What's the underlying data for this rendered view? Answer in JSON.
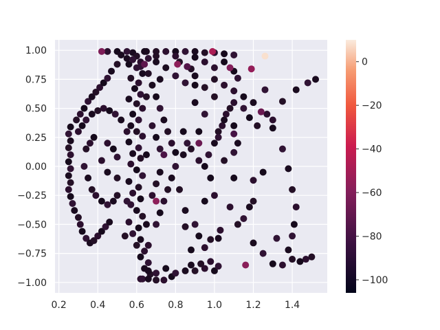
{
  "chart_data": {
    "type": "scatter",
    "title": "",
    "xlabel": "",
    "ylabel": "",
    "xlim": [
      0.18,
      1.58
    ],
    "ylim": [
      -1.09,
      1.09
    ],
    "grid": true,
    "xticks": [
      0.2,
      0.4,
      0.6,
      0.8,
      1.0,
      1.2,
      1.4
    ],
    "xtick_labels": [
      "0.2",
      "0.4",
      "0.6",
      "0.8",
      "1.0",
      "1.2",
      "1.4"
    ],
    "yticks": [
      -1.0,
      -0.75,
      -0.5,
      -0.25,
      0.0,
      0.25,
      0.5,
      0.75,
      1.0
    ],
    "ytick_labels": [
      "−1.00",
      "−0.75",
      "−0.50",
      "−0.25",
      "0.00",
      "0.25",
      "0.50",
      "0.75",
      "1.00"
    ],
    "colorbar": {
      "label": "",
      "range": [
        -106,
        10
      ],
      "ticks": [
        0,
        -20,
        -40,
        -60,
        -80,
        -100
      ],
      "tick_labels": [
        "0",
        "−20",
        "−40",
        "−60",
        "−80",
        "−100"
      ],
      "colormap": "rocket"
    },
    "colors": {
      "axes_background": "#eaeaf2",
      "grid": "#ffffff",
      "text": "#262626"
    },
    "clusters": {
      "dense_column": [
        [
          0.58,
          0.98
        ],
        [
          0.6,
          0.95
        ],
        [
          0.62,
          0.9
        ],
        [
          0.56,
          0.88
        ],
        [
          0.6,
          0.85
        ],
        [
          0.63,
          0.8
        ],
        [
          0.57,
          0.76
        ],
        [
          0.61,
          0.72
        ],
        [
          0.59,
          0.67
        ],
        [
          0.62,
          0.62
        ],
        [
          0.56,
          0.58
        ],
        [
          0.6,
          0.54
        ],
        [
          0.63,
          0.5
        ],
        [
          0.58,
          0.45
        ],
        [
          0.61,
          0.4
        ],
        [
          0.57,
          0.35
        ],
        [
          0.6,
          0.3
        ],
        [
          0.63,
          0.26
        ],
        [
          0.56,
          0.21
        ],
        [
          0.61,
          0.16
        ],
        [
          0.58,
          0.11
        ],
        [
          0.62,
          0.07
        ],
        [
          0.57,
          0.02
        ],
        [
          0.6,
          -0.03
        ],
        [
          0.63,
          -0.08
        ],
        [
          0.56,
          -0.13
        ],
        [
          0.61,
          -0.18
        ],
        [
          0.58,
          -0.23
        ],
        [
          0.62,
          -0.28
        ],
        [
          0.57,
          -0.33
        ],
        [
          0.6,
          -0.38
        ],
        [
          0.63,
          -0.43
        ],
        [
          0.56,
          -0.48
        ],
        [
          0.61,
          -0.53
        ],
        [
          0.58,
          -0.58
        ],
        [
          0.62,
          -0.63
        ],
        [
          0.6,
          -0.68
        ],
        [
          0.64,
          -0.73
        ],
        [
          0.62,
          -0.78
        ],
        [
          0.66,
          -0.83
        ],
        [
          0.64,
          -0.88
        ],
        [
          0.67,
          -0.93
        ],
        [
          0.62,
          -0.97
        ],
        [
          0.64,
          0.99
        ],
        [
          0.66,
          0.93
        ],
        [
          0.55,
          0.93
        ],
        [
          0.65,
          0.6
        ],
        [
          0.55,
          0.3
        ],
        [
          0.65,
          0.1
        ],
        [
          0.55,
          -0.3
        ],
        [
          0.65,
          -0.5
        ],
        [
          0.54,
          -0.6
        ],
        [
          0.66,
          -0.68
        ]
      ],
      "outer_arc": [
        [
          0.26,
          0.34
        ],
        [
          0.25,
          0.28
        ],
        [
          0.26,
          0.22
        ],
        [
          0.25,
          0.16
        ],
        [
          0.26,
          0.1
        ],
        [
          0.25,
          0.04
        ],
        [
          0.26,
          -0.02
        ],
        [
          0.25,
          -0.08
        ],
        [
          0.26,
          -0.14
        ],
        [
          0.25,
          -0.2
        ],
        [
          0.26,
          -0.26
        ],
        [
          0.27,
          -0.32
        ],
        [
          0.28,
          -0.38
        ],
        [
          0.3,
          -0.44
        ],
        [
          0.31,
          -0.5
        ],
        [
          0.32,
          -0.56
        ],
        [
          0.34,
          -0.62
        ],
        [
          0.36,
          -0.66
        ],
        [
          0.38,
          -0.64
        ],
        [
          0.4,
          -0.6
        ],
        [
          0.42,
          -0.56
        ],
        [
          0.44,
          -0.52
        ],
        [
          0.46,
          -0.48
        ],
        [
          0.29,
          0.4
        ],
        [
          0.31,
          0.45
        ],
        [
          0.33,
          0.5
        ],
        [
          0.35,
          0.56
        ],
        [
          0.37,
          0.6
        ],
        [
          0.39,
          0.64
        ],
        [
          0.41,
          0.68
        ],
        [
          0.43,
          0.72
        ],
        [
          0.45,
          0.76
        ],
        [
          0.47,
          0.82
        ],
        [
          0.5,
          0.88
        ]
      ],
      "inner_ring": [
        [
          0.3,
          0.3
        ],
        [
          0.32,
          0.35
        ],
        [
          0.34,
          0.4
        ],
        [
          0.37,
          0.45
        ],
        [
          0.4,
          0.48
        ],
        [
          0.43,
          0.5
        ],
        [
          0.46,
          0.48
        ],
        [
          0.49,
          0.45
        ],
        [
          0.52,
          0.4
        ],
        [
          0.34,
          0.15
        ],
        [
          0.36,
          0.2
        ],
        [
          0.38,
          0.25
        ],
        [
          0.33,
          0.0
        ],
        [
          0.35,
          -0.1
        ],
        [
          0.37,
          -0.2
        ],
        [
          0.39,
          -0.25
        ],
        [
          0.42,
          -0.3
        ],
        [
          0.45,
          -0.33
        ],
        [
          0.48,
          -0.3
        ],
        [
          0.5,
          -0.25
        ],
        [
          0.45,
          0.2
        ],
        [
          0.48,
          0.15
        ],
        [
          0.5,
          0.08
        ],
        [
          0.45,
          -0.05
        ],
        [
          0.5,
          -0.1
        ],
        [
          0.42,
          0.05
        ]
      ],
      "right_lobe": [
        [
          0.7,
          0.6
        ],
        [
          0.72,
          0.5
        ],
        [
          0.74,
          0.4
        ],
        [
          0.76,
          0.3
        ],
        [
          0.78,
          0.2
        ],
        [
          0.8,
          0.12
        ],
        [
          0.8,
          0.0
        ],
        [
          0.78,
          -0.1
        ],
        [
          0.76,
          -0.2
        ],
        [
          0.74,
          -0.3
        ],
        [
          0.72,
          -0.4
        ],
        [
          0.7,
          -0.5
        ],
        [
          0.68,
          0.7
        ],
        [
          0.66,
          0.8
        ],
        [
          0.68,
          0.35
        ],
        [
          0.7,
          0.25
        ],
        [
          0.72,
          0.15
        ],
        [
          0.72,
          -0.05
        ],
        [
          0.7,
          -0.15
        ],
        [
          0.68,
          -0.25
        ],
        [
          0.84,
          0.3
        ],
        [
          0.86,
          0.2
        ],
        [
          0.84,
          0.1
        ],
        [
          0.82,
          -0.2
        ]
      ],
      "top_band": [
        [
          0.45,
          0.99
        ],
        [
          0.5,
          0.99
        ],
        [
          0.55,
          0.99
        ],
        [
          0.65,
          0.99
        ],
        [
          0.7,
          0.99
        ],
        [
          0.75,
          0.99
        ],
        [
          0.8,
          0.99
        ],
        [
          0.85,
          0.99
        ],
        [
          0.9,
          0.99
        ],
        [
          0.95,
          0.98
        ],
        [
          1.0,
          0.98
        ],
        [
          1.05,
          0.97
        ],
        [
          1.1,
          0.96
        ],
        [
          0.52,
          0.96
        ],
        [
          0.7,
          0.95
        ],
        [
          0.8,
          0.95
        ],
        [
          0.9,
          0.94
        ],
        [
          0.58,
          0.92
        ],
        [
          0.7,
          0.9
        ],
        [
          0.82,
          0.9
        ],
        [
          0.95,
          0.9
        ],
        [
          1.05,
          0.9
        ],
        [
          0.62,
          0.86
        ],
        [
          0.75,
          0.85
        ],
        [
          0.88,
          0.84
        ],
        [
          1.0,
          0.85
        ],
        [
          1.1,
          0.82
        ],
        [
          0.8,
          0.78
        ],
        [
          0.9,
          0.78
        ],
        [
          1.0,
          0.75
        ],
        [
          1.05,
          0.7
        ],
        [
          0.9,
          0.7
        ],
        [
          0.85,
          0.72
        ],
        [
          0.72,
          0.75
        ],
        [
          0.95,
          0.68
        ],
        [
          1.1,
          0.65
        ],
        [
          1.15,
          0.6
        ]
      ],
      "bottom_band": [
        [
          0.63,
          -0.97
        ],
        [
          0.66,
          -0.97
        ],
        [
          0.7,
          -0.98
        ],
        [
          0.74,
          -0.98
        ],
        [
          0.78,
          -0.95
        ],
        [
          0.8,
          -0.92
        ],
        [
          0.85,
          -0.9
        ],
        [
          0.9,
          -0.9
        ],
        [
          0.95,
          -0.88
        ],
        [
          1.0,
          -0.9
        ],
        [
          1.02,
          -0.86
        ],
        [
          0.88,
          -0.85
        ],
        [
          0.93,
          -0.84
        ],
        [
          0.98,
          -0.82
        ],
        [
          0.75,
          -0.88
        ],
        [
          0.7,
          -0.92
        ],
        [
          0.66,
          -0.9
        ]
      ],
      "sparse": [
        [
          0.88,
          0.15
        ],
        [
          0.92,
          0.05
        ],
        [
          0.95,
          0.0
        ],
        [
          0.97,
          0.1
        ],
        [
          1.0,
          0.2
        ],
        [
          1.02,
          0.3
        ],
        [
          1.04,
          0.35
        ],
        [
          0.98,
          -0.1
        ],
        [
          1.02,
          0.25
        ],
        [
          1.05,
          0.4
        ],
        [
          1.08,
          0.5
        ],
        [
          1.1,
          0.55
        ],
        [
          0.92,
          0.3
        ],
        [
          0.95,
          0.45
        ],
        [
          0.9,
          0.55
        ],
        [
          1.0,
          0.6
        ],
        [
          1.06,
          0.45
        ],
        [
          1.1,
          0.35
        ],
        [
          1.15,
          0.5
        ],
        [
          1.2,
          0.55
        ],
        [
          1.22,
          0.35
        ],
        [
          1.27,
          0.45
        ],
        [
          1.3,
          0.33
        ],
        [
          1.35,
          0.15
        ],
        [
          1.38,
          -0.02
        ],
        [
          1.4,
          -0.2
        ],
        [
          1.42,
          -0.35
        ],
        [
          1.41,
          -0.5
        ],
        [
          1.4,
          -0.6
        ],
        [
          1.38,
          -0.72
        ],
        [
          1.4,
          -0.8
        ],
        [
          1.35,
          -0.85
        ],
        [
          1.3,
          -0.84
        ],
        [
          1.25,
          -0.75
        ],
        [
          1.2,
          -0.66
        ],
        [
          1.12,
          -0.5
        ],
        [
          1.08,
          -0.35
        ],
        [
          1.1,
          -0.1
        ],
        [
          1.15,
          -0.45
        ],
        [
          1.18,
          -0.35
        ],
        [
          1.2,
          -0.3
        ],
        [
          1.2,
          -0.12
        ],
        [
          1.25,
          -0.05
        ],
        [
          1.48,
          0.72
        ],
        [
          1.52,
          0.75
        ],
        [
          1.5,
          -0.78
        ],
        [
          1.47,
          -0.8
        ],
        [
          1.44,
          -0.82
        ],
        [
          1.32,
          -0.62
        ],
        [
          1.02,
          -0.62
        ],
        [
          0.98,
          -0.63
        ],
        [
          0.95,
          -0.7
        ],
        [
          0.92,
          -0.6
        ],
        [
          0.9,
          -0.5
        ],
        [
          0.85,
          -0.38
        ],
        [
          0.85,
          -0.52
        ],
        [
          1.03,
          -0.55
        ],
        [
          0.88,
          -0.72
        ],
        [
          1.1,
          0.12
        ],
        [
          1.12,
          0.2
        ],
        [
          1.05,
          0.05
        ],
        [
          1.0,
          -0.25
        ],
        [
          0.95,
          -0.3
        ],
        [
          1.26,
          0.66
        ],
        [
          1.42,
          0.66
        ],
        [
          1.35,
          0.56
        ],
        [
          1.3,
          0.4
        ],
        [
          1.18,
          0.42
        ],
        [
          1.12,
          0.76
        ]
      ],
      "highlighted": [
        {
          "x": 1.26,
          "y": 0.95,
          "value": 8
        },
        {
          "x": 0.99,
          "y": 0.99,
          "value": -48
        },
        {
          "x": 1.19,
          "y": 0.84,
          "value": -55
        },
        {
          "x": 0.81,
          "y": 0.88,
          "value": -57
        },
        {
          "x": 0.7,
          "y": -0.3,
          "value": -57
        },
        {
          "x": 1.16,
          "y": -0.85,
          "value": -58
        },
        {
          "x": 1.08,
          "y": 0.85,
          "value": -60
        },
        {
          "x": 0.42,
          "y": 0.99,
          "value": -62
        },
        {
          "x": 1.24,
          "y": 0.47,
          "value": -68
        },
        {
          "x": 0.92,
          "y": 0.2,
          "value": -68
        },
        {
          "x": 0.64,
          "y": 0.88,
          "value": -72
        },
        {
          "x": 0.86,
          "y": 0.86,
          "value": -75
        },
        {
          "x": 0.74,
          "y": 0.1,
          "value": -78
        },
        {
          "x": 1.1,
          "y": 0.28,
          "value": -80
        }
      ]
    }
  }
}
